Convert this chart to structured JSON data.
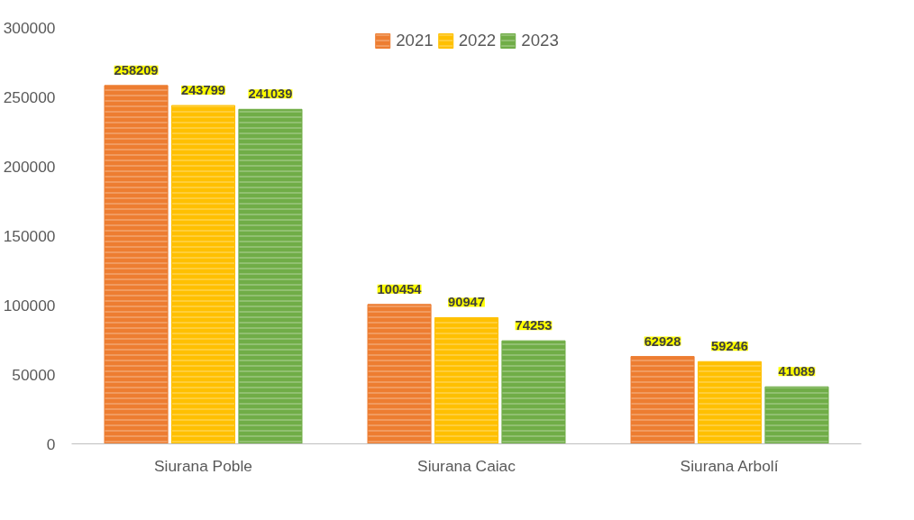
{
  "chart_data": {
    "type": "bar",
    "categories": [
      "Siurana Poble",
      "Siurana Caiac",
      "Siurana Arbolí"
    ],
    "series": [
      {
        "name": "2021",
        "color": "#ed7d31",
        "values": [
          258209,
          100454,
          62928
        ]
      },
      {
        "name": "2022",
        "color": "#ffc000",
        "values": [
          243799,
          90947,
          59246
        ]
      },
      {
        "name": "2023",
        "color": "#70ad47",
        "values": [
          241039,
          74253,
          41089
        ]
      }
    ],
    "ylim": [
      0,
      300000
    ],
    "yticks": [
      0,
      50000,
      100000,
      150000,
      200000,
      250000,
      300000
    ],
    "grid": false,
    "legend": "top",
    "data_labels": true
  }
}
